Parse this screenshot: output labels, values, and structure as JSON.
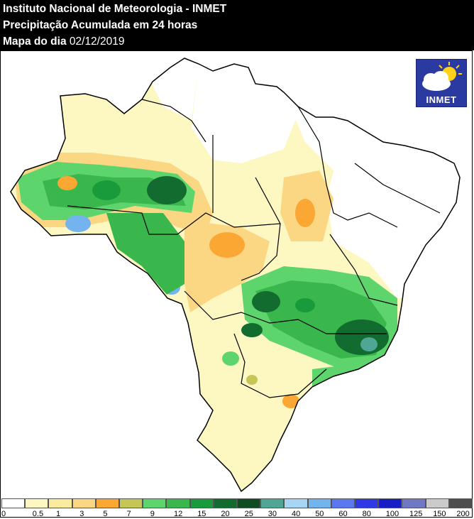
{
  "header": {
    "line1": "Instituto Nacional de Meteorologia - INMET",
    "line2": "Precipitação Acumulada em 24 horas",
    "line3_label": "Mapa do dia",
    "date": "02/12/2019"
  },
  "logo": {
    "label": "INMET",
    "icon": "cloud-sun-icon"
  },
  "legend": {
    "colors": [
      "#ffffff",
      "#fdf8c2",
      "#fbeb9c",
      "#fcd783",
      "#fba734",
      "#c5c655",
      "#5ed46d",
      "#3ab74c",
      "#199a3b",
      "#126b2f",
      "#0e4d22",
      "#4fa694",
      "#a7d6f4",
      "#73b4ef",
      "#5b78ee",
      "#2e38e4",
      "#161ec4",
      "#7077c3",
      "#cbcbcb",
      "#4e4e4e"
    ],
    "ticks": [
      "0",
      "0.5",
      "1",
      "3",
      "5",
      "7",
      "9",
      "12",
      "15",
      "20",
      "25",
      "30",
      "40",
      "50",
      "60",
      "80",
      "100",
      "125",
      "150",
      "200"
    ]
  }
}
